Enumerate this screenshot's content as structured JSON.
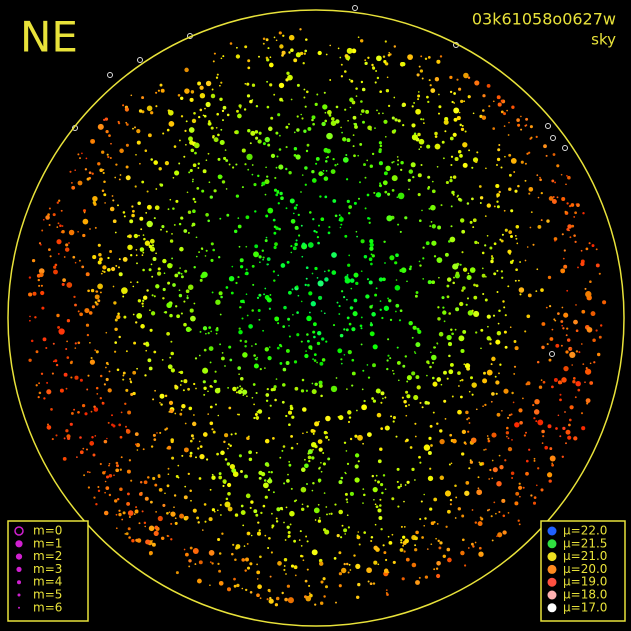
{
  "overlay": {
    "direction": "NE",
    "frame_id": "03k61058o0627w",
    "mode": "sky"
  },
  "magnitude_legend": {
    "items": [
      "m=0",
      "m=1",
      "m=2",
      "m=3",
      "m=4",
      "m=5",
      "m=6"
    ]
  },
  "mu_legend": {
    "items": [
      "μ=22.0",
      "μ=21.5",
      "μ=21.0",
      "μ=20.0",
      "μ=19.0",
      "μ=18.0",
      "μ=17.0"
    ]
  }
}
